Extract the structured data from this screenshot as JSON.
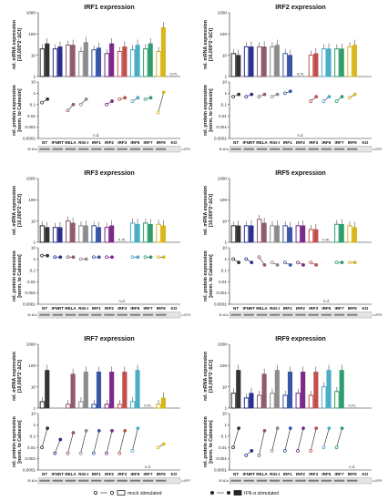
{
  "categories": [
    "NT",
    "IFNRT",
    "RELA",
    "RIG-I",
    "IRF1",
    "IRF2",
    "IRF3",
    "IRF5",
    "IRF7",
    "IRF9",
    "KO"
  ],
  "category_colors": [
    "#333333",
    "#2a2f8f",
    "#8e5b6f",
    "#8c8c8c",
    "#3a56a6",
    "#7b2a8a",
    "#c0504d",
    "#4bacc6",
    "#2e9e6e",
    "#d9b61e",
    "#888888"
  ],
  "ylabel_mrna_1": "rel. mRNA expression",
  "ylabel_mrna_2": "[10,000*2⁻ΔCt]",
  "ylabel_protein_1": "rel. protein expression",
  "ylabel_protein_2": "[norm. to Calnexin]",
  "mrna_ticks": [
    "1000",
    "100",
    "10",
    "1"
  ],
  "protein_ticks": [
    "10",
    "1",
    "0.1",
    "0.01",
    "0.001",
    "0.0001"
  ],
  "nm_label": "n.m.",
  "nd_label": "n.d.",
  "blot_kda": "55 kDa",
  "legend": {
    "mock": "mock stimulated",
    "ifn": "IFN-α stimulated"
  },
  "chart_data": [
    {
      "type": "bar",
      "title": "IRF1 expression",
      "blot_label": "α-IRF1",
      "ylim_mrna": [
        1,
        1000
      ],
      "ylim_protein": [
        0.0001,
        10
      ],
      "yscale": "log",
      "series": [
        {
          "name": "mock stimulated",
          "values": [
            20,
            20,
            30,
            15,
            18,
            12,
            15,
            18,
            20,
            15,
            null
          ]
        },
        {
          "name": "IFN-α stimulated",
          "values": [
            35,
            25,
            30,
            40,
            22,
            35,
            25,
            30,
            35,
            200,
            null
          ]
        }
      ],
      "nm_index": [
        10
      ],
      "protein": {
        "mock": [
          0.15,
          null,
          0.03,
          0.1,
          null,
          0.1,
          0.3,
          0.2,
          0.3,
          0.02,
          null
        ],
        "ifn": [
          0.3,
          null,
          0.1,
          0.3,
          null,
          0.2,
          0.4,
          0.4,
          0.4,
          1.2,
          null
        ]
      },
      "nd_index": [
        4
      ]
    },
    {
      "type": "bar",
      "title": "IRF2 expression",
      "blot_label": "α-IRF2",
      "ylim_mrna": [
        1,
        1000
      ],
      "ylim_protein": [
        0.0001,
        10
      ],
      "yscale": "log",
      "series": [
        {
          "name": "mock stimulated",
          "values": [
            12,
            25,
            25,
            25,
            12,
            null,
            10,
            20,
            20,
            25,
            null
          ]
        },
        {
          "name": "IFN-α stimulated",
          "values": [
            10,
            25,
            25,
            30,
            10,
            null,
            12,
            20,
            20,
            30,
            null
          ]
        }
      ],
      "nm_index": [
        5
      ],
      "protein": {
        "mock": [
          0.5,
          0.5,
          0.5,
          0.5,
          1,
          null,
          0.2,
          0.2,
          0.2,
          0.4,
          null
        ],
        "ifn": [
          0.8,
          0.8,
          0.8,
          0.8,
          1.5,
          null,
          0.5,
          0.5,
          0.5,
          0.8,
          null
        ]
      },
      "nd_index": [
        5
      ]
    },
    {
      "type": "bar",
      "title": "IRF3 expression",
      "blot_label": "α-IRF3",
      "ylim_mrna": [
        1,
        1000
      ],
      "ylim_protein": [
        0.0001,
        10
      ],
      "yscale": "log",
      "series": [
        {
          "name": "mock stimulated",
          "values": [
            6,
            5,
            10,
            6,
            6,
            5,
            null,
            8,
            8,
            7,
            null
          ]
        },
        {
          "name": "IFN-α stimulated",
          "values": [
            5,
            5,
            8,
            6,
            5,
            6,
            null,
            7,
            7,
            6,
            null
          ]
        }
      ],
      "nm_index": [
        6
      ],
      "protein": {
        "mock": [
          2,
          1.5,
          1.5,
          1,
          1.5,
          1.5,
          null,
          1.5,
          1.5,
          1.5,
          null
        ],
        "ifn": [
          2,
          1.5,
          1.5,
          1,
          1.5,
          1.5,
          null,
          1.5,
          1.5,
          1.5,
          null
        ]
      },
      "nd_index": [
        6
      ]
    },
    {
      "type": "bar",
      "title": "IRF5 expression",
      "blot_label": "α-IRF5",
      "ylim_mrna": [
        1,
        1000
      ],
      "ylim_protein": [
        0.0001,
        10
      ],
      "yscale": "log",
      "series": [
        {
          "name": "mock stimulated",
          "values": [
            6,
            6,
            12,
            6,
            6,
            6,
            4,
            null,
            7,
            6,
            null
          ]
        },
        {
          "name": "IFN-α stimulated",
          "values": [
            6,
            6,
            8,
            6,
            5,
            6,
            4,
            null,
            7,
            5,
            null
          ]
        }
      ],
      "nm_index": [
        7
      ],
      "protein": {
        "mock": [
          1,
          1,
          1.5,
          0.5,
          0.5,
          0.5,
          0.5,
          null,
          0.5,
          0.5,
          null
        ],
        "ifn": [
          0.5,
          0.5,
          0.3,
          0.3,
          0.3,
          0.3,
          0.3,
          null,
          0.5,
          0.5,
          null
        ]
      },
      "nd_index": [
        7
      ]
    },
    {
      "type": "bar",
      "title": "IRF7 expression",
      "blot_label": "α-IRF7",
      "ylim_mrna": [
        1,
        1000
      ],
      "ylim_protein": [
        0.0001,
        10
      ],
      "yscale": "log",
      "series": [
        {
          "name": "mock stimulated",
          "values": [
            2,
            null,
            1.5,
            2,
            1.5,
            1.5,
            1.5,
            2,
            null,
            1.5,
            null
          ]
        },
        {
          "name": "IFN-α stimulated",
          "values": [
            60,
            null,
            40,
            50,
            50,
            50,
            50,
            60,
            null,
            3,
            null
          ]
        }
      ],
      "nm_index": [
        8
      ],
      "protein": {
        "mock": [
          0.01,
          0.003,
          0.003,
          0.003,
          0.003,
          0.003,
          0.003,
          0.005,
          null,
          0.01,
          null
        ],
        "ifn": [
          0.5,
          0.05,
          0.2,
          0.3,
          0.3,
          0.3,
          0.3,
          0.5,
          null,
          0.02,
          null
        ]
      },
      "nd_index": [
        8
      ]
    },
    {
      "type": "bar",
      "title": "IRF9 expression",
      "blot_label": "α-IRF9",
      "ylim_mrna": [
        1,
        1000
      ],
      "ylim_protein": [
        0.0001,
        10
      ],
      "yscale": "log",
      "series": [
        {
          "name": "mock stimulated",
          "values": [
            5,
            3,
            4,
            5,
            4,
            5,
            4,
            10,
            6,
            null,
            null
          ]
        },
        {
          "name": "IFN-α stimulated",
          "values": [
            60,
            5,
            40,
            60,
            50,
            50,
            50,
            60,
            60,
            null,
            null
          ]
        }
      ],
      "nm_index": [
        9
      ],
      "protein": {
        "mock": [
          0.01,
          0.002,
          0.002,
          0.005,
          0.005,
          0.005,
          0.005,
          0.01,
          0.01,
          null,
          null
        ],
        "ifn": [
          0.5,
          0.005,
          0.3,
          0.5,
          0.5,
          0.5,
          0.5,
          0.5,
          0.5,
          null,
          null
        ]
      },
      "nd_index": [
        9
      ]
    }
  ]
}
